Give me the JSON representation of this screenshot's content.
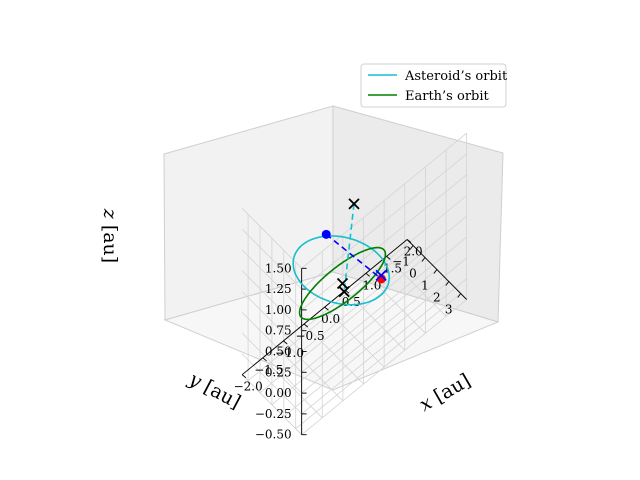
{
  "chart_data": {
    "type": "line",
    "projection": "3d",
    "xlabel": "$x$ [au]",
    "ylabel": "$y$ [au]",
    "zlabel": "$z$ [au]",
    "xlabel_display": "x [au]",
    "ylabel_display": "y [au]",
    "zlabel_display": "z [au]",
    "xlim": [
      -2.0,
      2.0
    ],
    "ylim": [
      -1.5,
      3.5
    ],
    "zlim": [
      -0.5,
      1.5
    ],
    "xticks": [
      "−2.0",
      "−1.5",
      "−1.0",
      "−0.5",
      "0.0",
      "0.5",
      "1.0",
      "1.5",
      "2.0"
    ],
    "xtick_values": [
      -2.0,
      -1.5,
      -1.0,
      -0.5,
      0.0,
      0.5,
      1.0,
      1.5,
      2.0
    ],
    "yticks": [
      "−1",
      "0",
      "1",
      "2",
      "3"
    ],
    "ytick_values": [
      -1,
      0,
      1,
      2,
      3
    ],
    "zticks": [
      "−0.50",
      "−0.25",
      "0.00",
      "0.25",
      "0.50",
      "0.75",
      "1.00",
      "1.25",
      "1.50"
    ],
    "ztick_values": [
      -0.5,
      -0.25,
      0.0,
      0.25,
      0.5,
      0.75,
      1.0,
      1.25,
      1.5
    ],
    "grid": true,
    "legend_position": "top-right",
    "series": [
      {
        "name": "Asteroid’s orbit",
        "color": "#17becf",
        "style": "ellipse",
        "center": [
          -0.45,
          1.45,
          0.55
        ],
        "axis_u": [
          0.55,
          -2.3,
          -0.95
        ],
        "axis_v": [
          -1.0,
          -0.55,
          0.45
        ]
      },
      {
        "name": "Earth’s orbit",
        "color": "#008000",
        "style": "circle",
        "center": [
          0.0,
          0.0,
          0.0
        ],
        "radius": 1.0
      }
    ],
    "points": [
      {
        "label": "asteroid-position",
        "marker": "dot",
        "color": "#0000ff",
        "coords": [
          -1.0,
          2.1,
          1.3
        ]
      },
      {
        "label": "earth-position",
        "marker": "dot",
        "color": "#ff0000",
        "coords": [
          1.0,
          -0.2,
          -0.38
        ]
      },
      {
        "label": "earth-near-marker",
        "marker": "x",
        "color": "#0000ff",
        "coords": [
          1.0,
          -0.22,
          -0.34
        ]
      },
      {
        "label": "sun",
        "marker": "x",
        "color": "#000000",
        "coords": [
          0.0,
          0.0,
          0.0
        ]
      },
      {
        "label": "top-marker",
        "marker": "x",
        "color": "#000000",
        "coords": [
          -0.5,
          2.7,
          1.55
        ]
      },
      {
        "label": "bottom-marker",
        "marker": "x",
        "color": "#000000",
        "coords": [
          0.3,
          -0.9,
          -0.35
        ]
      }
    ],
    "dashed_lines": [
      {
        "label": "asteroid-to-earth",
        "color": "#0000ff",
        "from": [
          -1.0,
          2.1,
          1.3
        ],
        "to": [
          1.0,
          -0.2,
          -0.38
        ]
      },
      {
        "label": "apsides-line",
        "color": "#17becf",
        "from": [
          -0.5,
          2.7,
          1.55
        ],
        "to": [
          0.3,
          -0.9,
          -0.35
        ]
      }
    ]
  }
}
